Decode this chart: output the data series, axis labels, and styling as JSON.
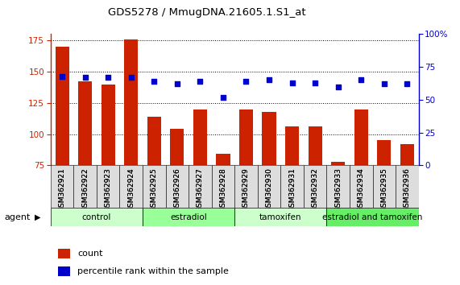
{
  "title": "GDS5278 / MmugDNA.21605.1.S1_at",
  "samples": [
    "GSM362921",
    "GSM362922",
    "GSM362923",
    "GSM362924",
    "GSM362925",
    "GSM362926",
    "GSM362927",
    "GSM362928",
    "GSM362929",
    "GSM362930",
    "GSM362931",
    "GSM362932",
    "GSM362933",
    "GSM362934",
    "GSM362935",
    "GSM362936"
  ],
  "counts": [
    170,
    142,
    140,
    176,
    114,
    104,
    120,
    84,
    120,
    118,
    106,
    106,
    78,
    120,
    95,
    92
  ],
  "percentile_ranks": [
    68,
    67,
    67,
    67,
    64,
    62,
    64,
    52,
    64,
    65,
    63,
    63,
    60,
    65,
    62,
    62
  ],
  "groups": [
    {
      "label": "control",
      "start": 0,
      "end": 4,
      "color": "#ccffcc"
    },
    {
      "label": "estradiol",
      "start": 4,
      "end": 8,
      "color": "#99ff99"
    },
    {
      "label": "tamoxifen",
      "start": 8,
      "end": 12,
      "color": "#ccffcc"
    },
    {
      "label": "estradiol and tamoxifen",
      "start": 12,
      "end": 16,
      "color": "#66ee66"
    }
  ],
  "ylim_left": [
    75,
    180
  ],
  "ylim_right": [
    0,
    100
  ],
  "yticks_left": [
    75,
    100,
    125,
    150,
    175
  ],
  "yticks_right": [
    0,
    25,
    50,
    75,
    100
  ],
  "bar_color": "#cc2200",
  "dot_color": "#0000cc",
  "grid_color": "#000000",
  "bg_color": "#ffffff",
  "plot_bg": "#ffffff",
  "left_axis_color": "#cc2200",
  "right_axis_color": "#0000cc",
  "legend_count_label": "count",
  "legend_pct_label": "percentile rank within the sample",
  "bar_width": 0.6
}
